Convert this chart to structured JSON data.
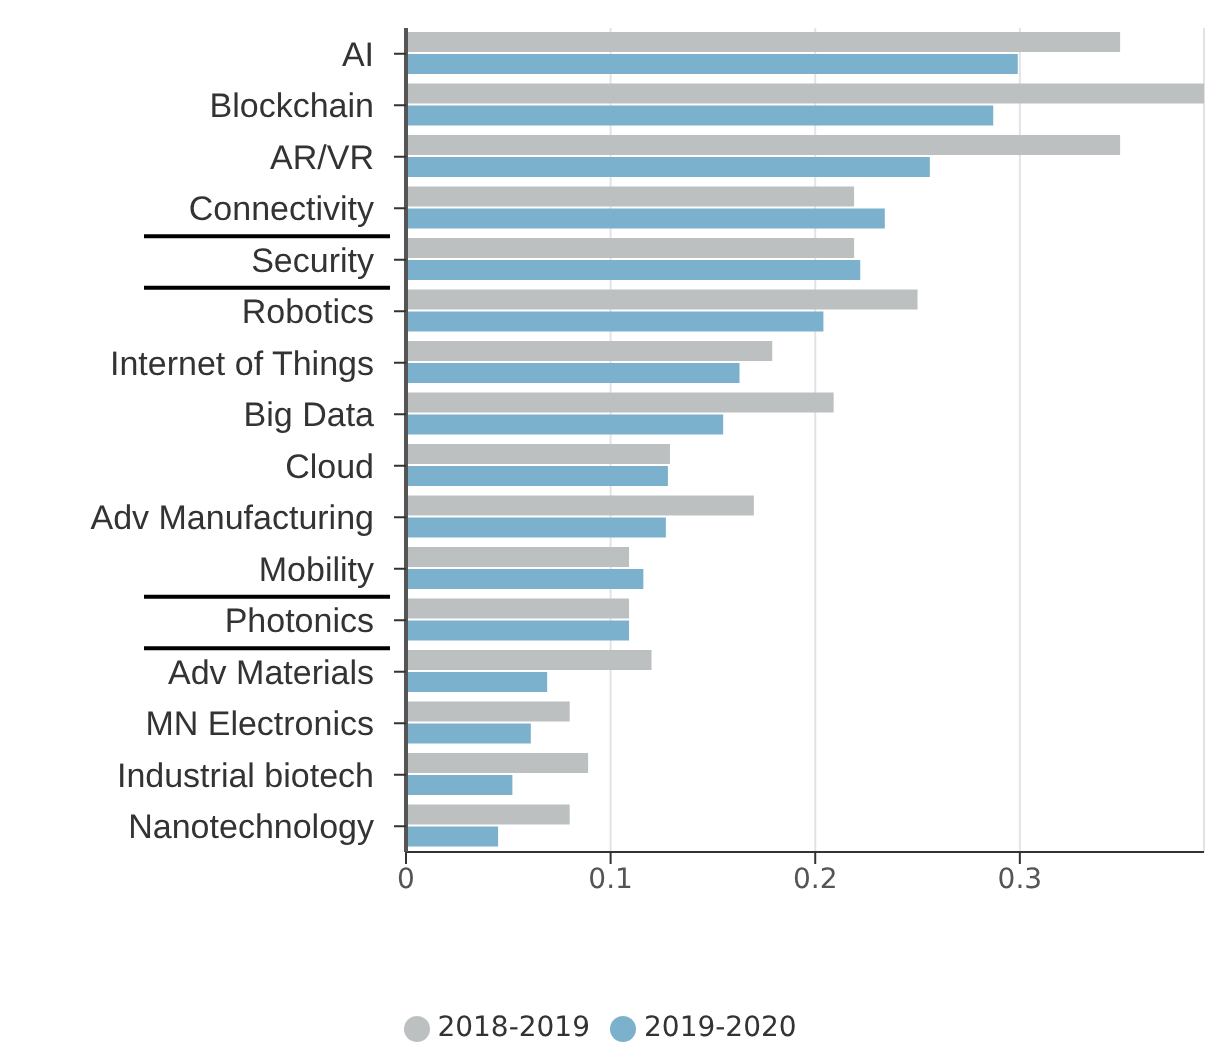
{
  "chart_data": {
    "type": "bar",
    "orientation": "horizontal",
    "categories": [
      "AI",
      "Blockchain",
      "AR/VR",
      "Connectivity",
      "Security",
      "Robotics",
      "Internet of Things",
      "Big Data",
      "Cloud",
      "Adv Manufacturing",
      "Mobility",
      "Photonics",
      "Adv Materials",
      "MN Electronics",
      "Industrial biotech",
      "Nanotechnology"
    ],
    "series": [
      {
        "name": "2018-2019",
        "color": "#bdc0c1",
        "values": [
          0.349,
          0.39,
          0.349,
          0.219,
          0.219,
          0.25,
          0.179,
          0.209,
          0.129,
          0.17,
          0.109,
          0.109,
          0.12,
          0.08,
          0.089,
          0.08
        ]
      },
      {
        "name": "2019-2020",
        "color": "#7bb1cc",
        "values": [
          0.299,
          0.287,
          0.256,
          0.234,
          0.222,
          0.204,
          0.163,
          0.155,
          0.128,
          0.127,
          0.116,
          0.109,
          0.069,
          0.061,
          0.052,
          0.045
        ]
      }
    ],
    "xlim": [
      0,
      0.39
    ],
    "xticks": [
      0,
      0.1,
      0.2,
      0.3
    ],
    "grid": "x",
    "legend": "bottom"
  }
}
